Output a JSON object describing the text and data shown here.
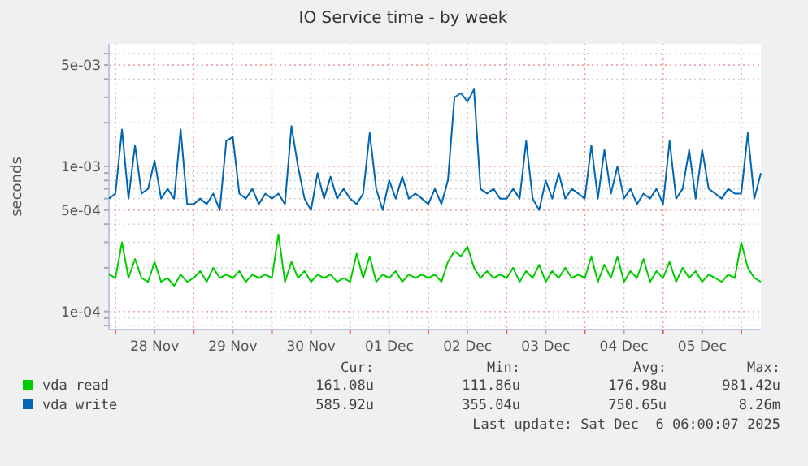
{
  "chart_data": {
    "type": "line",
    "title": "IO Service time - by week",
    "ylabel": "seconds",
    "log": "y",
    "grid": true,
    "legend": "bottom",
    "line_style": "solid",
    "x": [
      "2025-11-27T22:00",
      "2025-11-28T00:00",
      "2025-11-28T02:00",
      "2025-11-28T04:00",
      "2025-11-28T06:00",
      "2025-11-28T08:00",
      "2025-11-28T10:00",
      "2025-11-28T12:00",
      "2025-11-28T14:00",
      "2025-11-28T16:00",
      "2025-11-28T18:00",
      "2025-11-28T20:00",
      "2025-11-28T22:00",
      "2025-11-29T00:00",
      "2025-11-29T02:00",
      "2025-11-29T04:00",
      "2025-11-29T06:00",
      "2025-11-29T08:00",
      "2025-11-29T10:00",
      "2025-11-29T12:00",
      "2025-11-29T14:00",
      "2025-11-29T16:00",
      "2025-11-29T18:00",
      "2025-11-29T20:00",
      "2025-11-29T22:00",
      "2025-11-30T00:00",
      "2025-11-30T02:00",
      "2025-11-30T04:00",
      "2025-11-30T06:00",
      "2025-11-30T08:00",
      "2025-11-30T10:00",
      "2025-11-30T12:00",
      "2025-11-30T14:00",
      "2025-11-30T16:00",
      "2025-11-30T18:00",
      "2025-11-30T20:00",
      "2025-11-30T22:00",
      "2025-12-01T00:00",
      "2025-12-01T02:00",
      "2025-12-01T04:00",
      "2025-12-01T06:00",
      "2025-12-01T08:00",
      "2025-12-01T10:00",
      "2025-12-01T12:00",
      "2025-12-01T14:00",
      "2025-12-01T16:00",
      "2025-12-01T18:00",
      "2025-12-01T20:00",
      "2025-12-01T22:00",
      "2025-12-02T00:00",
      "2025-12-02T02:00",
      "2025-12-02T04:00",
      "2025-12-02T06:00",
      "2025-12-02T08:00",
      "2025-12-02T10:00",
      "2025-12-02T12:00",
      "2025-12-02T14:00",
      "2025-12-02T16:00",
      "2025-12-02T18:00",
      "2025-12-02T20:00",
      "2025-12-02T22:00",
      "2025-12-03T00:00",
      "2025-12-03T02:00",
      "2025-12-03T04:00",
      "2025-12-03T06:00",
      "2025-12-03T08:00",
      "2025-12-03T10:00",
      "2025-12-03T12:00",
      "2025-12-03T14:00",
      "2025-12-03T16:00",
      "2025-12-03T18:00",
      "2025-12-03T20:00",
      "2025-12-03T22:00",
      "2025-12-04T00:00",
      "2025-12-04T02:00",
      "2025-12-04T04:00",
      "2025-12-04T06:00",
      "2025-12-04T08:00",
      "2025-12-04T10:00",
      "2025-12-04T12:00",
      "2025-12-04T14:00",
      "2025-12-04T16:00",
      "2025-12-04T18:00",
      "2025-12-04T20:00",
      "2025-12-04T22:00",
      "2025-12-05T00:00",
      "2025-12-05T02:00",
      "2025-12-05T04:00",
      "2025-12-05T06:00",
      "2025-12-05T08:00",
      "2025-12-05T10:00",
      "2025-12-05T12:00",
      "2025-12-05T14:00",
      "2025-12-05T16:00",
      "2025-12-05T18:00",
      "2025-12-05T20:00",
      "2025-12-05T22:00",
      "2025-12-06T00:00",
      "2025-12-06T02:00",
      "2025-12-06T04:00",
      "2025-12-06T06:00"
    ],
    "xlim": [
      "2025-11-27T22:00",
      "2025-12-06T06:00"
    ],
    "xticks": [
      {
        "value": "2025-11-28T00:00",
        "label": null
      },
      {
        "value": "2025-11-28T12:00",
        "label": "28 Nov"
      },
      {
        "value": "2025-11-29T00:00",
        "label": null
      },
      {
        "value": "2025-11-29T12:00",
        "label": "29 Nov"
      },
      {
        "value": "2025-11-30T00:00",
        "label": null
      },
      {
        "value": "2025-11-30T12:00",
        "label": "30 Nov"
      },
      {
        "value": "2025-12-01T00:00",
        "label": null
      },
      {
        "value": "2025-12-01T12:00",
        "label": "01 Dec"
      },
      {
        "value": "2025-12-02T00:00",
        "label": null
      },
      {
        "value": "2025-12-02T12:00",
        "label": "02 Dec"
      },
      {
        "value": "2025-12-03T00:00",
        "label": null
      },
      {
        "value": "2025-12-03T12:00",
        "label": "03 Dec"
      },
      {
        "value": "2025-12-04T00:00",
        "label": null
      },
      {
        "value": "2025-12-04T12:00",
        "label": "04 Dec"
      },
      {
        "value": "2025-12-05T00:00",
        "label": null
      },
      {
        "value": "2025-12-05T12:00",
        "label": "05 Dec"
      },
      {
        "value": "2025-12-06T00:00",
        "label": null
      }
    ],
    "ylim": [
      7.5e-05,
      0.007
    ],
    "yticks": [
      {
        "value": 8e-05,
        "label": null
      },
      {
        "value": 9e-05,
        "label": null
      },
      {
        "value": 0.0001,
        "label": "1e-04"
      },
      {
        "value": 0.0002,
        "label": null
      },
      {
        "value": 0.0003,
        "label": null
      },
      {
        "value": 0.0004,
        "label": null
      },
      {
        "value": 0.0005,
        "label": "5e-04"
      },
      {
        "value": 0.0006,
        "label": null
      },
      {
        "value": 0.0007,
        "label": null
      },
      {
        "value": 0.0008,
        "label": null
      },
      {
        "value": 0.0009,
        "label": null
      },
      {
        "value": 0.001,
        "label": "1e-03"
      },
      {
        "value": 0.002,
        "label": null
      },
      {
        "value": 0.003,
        "label": null
      },
      {
        "value": 0.004,
        "label": null
      },
      {
        "value": 0.005,
        "label": "5e-03"
      },
      {
        "value": 0.006,
        "label": null
      }
    ],
    "series": [
      {
        "name": "vda read",
        "color": "#00cc00",
        "values": [
          0.00018,
          0.00017,
          0.0003,
          0.00017,
          0.00023,
          0.00017,
          0.00016,
          0.00022,
          0.00016,
          0.00017,
          0.00015,
          0.00018,
          0.00016,
          0.00017,
          0.00019,
          0.00016,
          0.0002,
          0.00017,
          0.00018,
          0.00017,
          0.00019,
          0.00016,
          0.00018,
          0.00017,
          0.00018,
          0.00017,
          0.00034,
          0.00016,
          0.00022,
          0.00017,
          0.00019,
          0.00016,
          0.00018,
          0.00017,
          0.00018,
          0.00016,
          0.00017,
          0.00016,
          0.00025,
          0.00017,
          0.00024,
          0.00016,
          0.00018,
          0.00017,
          0.00019,
          0.00016,
          0.00018,
          0.00017,
          0.00018,
          0.00017,
          0.00018,
          0.00016,
          0.00022,
          0.00026,
          0.00024,
          0.00028,
          0.0002,
          0.00017,
          0.00019,
          0.00017,
          0.00018,
          0.00017,
          0.0002,
          0.00016,
          0.00019,
          0.00017,
          0.00021,
          0.00016,
          0.00019,
          0.00017,
          0.0002,
          0.00017,
          0.00018,
          0.00017,
          0.00024,
          0.00016,
          0.00021,
          0.00017,
          0.00024,
          0.00016,
          0.00019,
          0.00017,
          0.00023,
          0.00016,
          0.00019,
          0.00017,
          0.00022,
          0.00016,
          0.0002,
          0.00017,
          0.00019,
          0.00016,
          0.00018,
          0.00017,
          0.00016,
          0.00018,
          0.00017,
          0.0003,
          0.0002,
          0.00017,
          0.00016
        ]
      },
      {
        "name": "vda write",
        "color": "#0066b3",
        "values": [
          0.0006,
          0.00065,
          0.0018,
          0.0006,
          0.0014,
          0.00065,
          0.0007,
          0.0011,
          0.0006,
          0.0007,
          0.0006,
          0.0018,
          0.00055,
          0.00055,
          0.0006,
          0.00055,
          0.00065,
          0.0005,
          0.0015,
          0.0016,
          0.00065,
          0.0006,
          0.0007,
          0.00055,
          0.00065,
          0.0006,
          0.00065,
          0.00055,
          0.0019,
          0.001,
          0.0006,
          0.0005,
          0.0009,
          0.0006,
          0.00085,
          0.0006,
          0.0007,
          0.0006,
          0.00055,
          0.00065,
          0.0017,
          0.0007,
          0.0005,
          0.0008,
          0.0006,
          0.00085,
          0.0006,
          0.00065,
          0.0006,
          0.00055,
          0.0007,
          0.00055,
          0.0008,
          0.003,
          0.0032,
          0.0028,
          0.0034,
          0.0007,
          0.00065,
          0.0007,
          0.0006,
          0.0006,
          0.0007,
          0.0006,
          0.0015,
          0.0006,
          0.0005,
          0.0008,
          0.0006,
          0.0009,
          0.0006,
          0.0007,
          0.00065,
          0.0006,
          0.0014,
          0.0006,
          0.0013,
          0.00065,
          0.001,
          0.0006,
          0.0007,
          0.00055,
          0.00065,
          0.0006,
          0.0007,
          0.00055,
          0.0015,
          0.0006,
          0.0007,
          0.0013,
          0.0006,
          0.0013,
          0.0007,
          0.00065,
          0.0006,
          0.0007,
          0.00065,
          0.00065,
          0.0017,
          0.0006,
          0.0009
        ]
      }
    ],
    "annotations": [
      "Cur:",
      "Min:",
      "Avg:",
      "Max:",
      "161.08u",
      "111.86u",
      "176.98u",
      "981.42u",
      "585.92u",
      "355.04u",
      "750.65u",
      "8.26m",
      "Last update: Sat Dec  6 06:00:07 2025"
    ]
  }
}
